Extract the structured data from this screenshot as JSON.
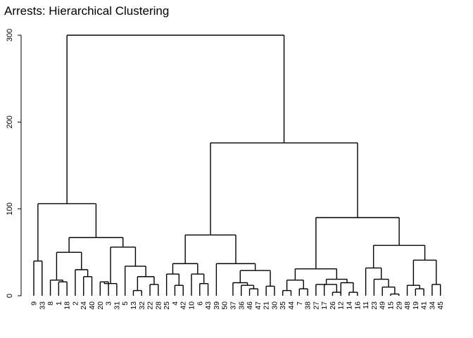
{
  "chart_data": {
    "type": "dendrogram",
    "title": "Arrests:  Hierarchical Clustering",
    "xlabel": "",
    "ylabel": "",
    "ylim": [
      0,
      300
    ],
    "yticks": [
      0,
      100,
      200,
      300
    ],
    "grid": false,
    "leaf_order": [
      "9",
      "33",
      "8",
      "1",
      "18",
      "2",
      "24",
      "40",
      "20",
      "3",
      "31",
      "5",
      "13",
      "32",
      "22",
      "28",
      "25",
      "4",
      "42",
      "10",
      "6",
      "43",
      "39",
      "50",
      "37",
      "36",
      "46",
      "47",
      "21",
      "30",
      "35",
      "44",
      "7",
      "38",
      "27",
      "17",
      "26",
      "12",
      "14",
      "16",
      "11",
      "23",
      "49",
      "15",
      "29",
      "48",
      "19",
      "41",
      "34",
      "45"
    ],
    "merges": [
      {
        "left": "L:9",
        "right": "L:33",
        "height": 40
      },
      {
        "left": "L:8",
        "right": "L:1",
        "height": 18
      },
      {
        "left": "M:2",
        "right": "L:18",
        "height": 16
      },
      {
        "left": "L:24",
        "right": "L:40",
        "height": 22
      },
      {
        "left": "L:2",
        "right": "M:4",
        "height": 30
      },
      {
        "left": "M:3",
        "right": "M:5",
        "height": 50
      },
      {
        "left": "L:20",
        "right": "L:3",
        "height": 16
      },
      {
        "left": "M:7",
        "right": "L:31",
        "height": 14
      },
      {
        "left": "L:13",
        "right": "L:32",
        "height": 6
      },
      {
        "left": "L:22",
        "right": "L:28",
        "height": 13
      },
      {
        "left": "M:9",
        "right": "M:10",
        "height": 22
      },
      {
        "left": "L:5",
        "right": "M:11",
        "height": 34
      },
      {
        "left": "M:8",
        "right": "M:12",
        "height": 56
      },
      {
        "left": "M:6",
        "right": "M:13",
        "height": 67
      },
      {
        "left": "M:1",
        "right": "M:14",
        "height": 106
      },
      {
        "left": "L:4",
        "right": "L:42",
        "height": 12
      },
      {
        "left": "L:25",
        "right": "M:16",
        "height": 25
      },
      {
        "left": "L:6",
        "right": "L:43",
        "height": 14
      },
      {
        "left": "L:10",
        "right": "M:18",
        "height": 25
      },
      {
        "left": "M:17",
        "right": "M:19",
        "height": 37
      },
      {
        "left": "L:46",
        "right": "L:47",
        "height": 8
      },
      {
        "left": "L:36",
        "right": "M:21",
        "height": 12
      },
      {
        "left": "L:37",
        "right": "M:22",
        "height": 15
      },
      {
        "left": "L:30",
        "right": "L:35",
        "height": 11
      },
      {
        "left": "L:21",
        "right": "M:24",
        "height": 22
      },
      {
        "left": "M:23",
        "right": "M:25",
        "height": 29
      },
      {
        "left": "L:50",
        "right": "M:26",
        "height": 37
      },
      {
        "left": "M:20",
        "right": "M:27",
        "height": 70
      },
      {
        "left": "L:44",
        "right": "L:7",
        "height": 6
      },
      {
        "left": "L:38",
        "right": "L:27",
        "height": 8
      },
      {
        "left": "M:29",
        "right": "M:30",
        "height": 18
      },
      {
        "left": "L:26",
        "right": "L:12",
        "height": 4
      },
      {
        "left": "L:17",
        "right": "M:32",
        "height": 13
      },
      {
        "left": "L:16",
        "right": "L:11",
        "height": 4
      },
      {
        "left": "L:14",
        "right": "M:34",
        "height": 15
      },
      {
        "left": "M:33",
        "right": "M:35",
        "height": 19
      },
      {
        "left": "M:31",
        "right": "M:36",
        "height": 31
      },
      {
        "left": "L:49",
        "right": "L:15",
        "height": 19
      },
      {
        "left": "L:23",
        "right": "M:38",
        "height": 32
      },
      {
        "left": "L:48",
        "right": "L:19",
        "height": 2
      },
      {
        "left": "L:29",
        "right": "M:40",
        "height": 10
      },
      {
        "left": "M:39",
        "right": "M:41",
        "height": 58
      },
      {
        "left": "L:34",
        "right": "L:45",
        "height": 8
      },
      {
        "left": "L:41",
        "right": "M:43",
        "height": 12
      },
      {
        "left": "L:46b",
        "right": "M:44",
        "height": 13
      },
      {
        "left": "M:44",
        "right": "L:45b",
        "height": 41
      },
      {
        "left": "M:42",
        "right": "M:46",
        "height": 90
      },
      {
        "left": "M:28",
        "right": "M:47",
        "height": 176
      },
      {
        "left": "M:15",
        "right": "M:48",
        "height": 300
      }
    ]
  }
}
